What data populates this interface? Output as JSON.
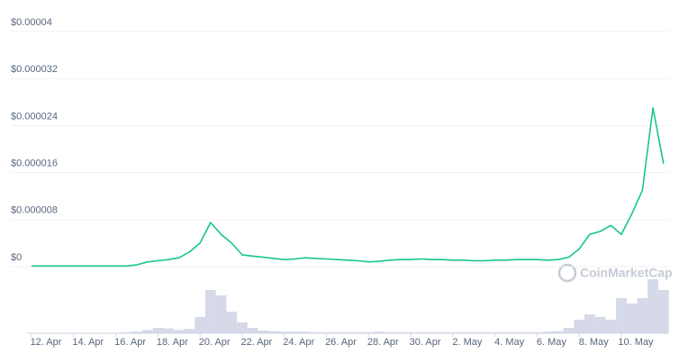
{
  "chart_data": {
    "type": "line",
    "watermark": "CoinMarketCap",
    "color": "#16c784",
    "volume_color": "#d5d9e8",
    "grid": true,
    "ylim": [
      0,
      4e-05
    ],
    "yticks": [
      {
        "value": 0,
        "label": "$0"
      },
      {
        "value": 8e-06,
        "label": "$0.000008"
      },
      {
        "value": 1.6e-05,
        "label": "$0.000016"
      },
      {
        "value": 2.4e-05,
        "label": "$0.000024"
      },
      {
        "value": 3.2e-05,
        "label": "$0.000032"
      },
      {
        "value": 4e-05,
        "label": "$0.00004"
      }
    ],
    "categories": [
      "12. Apr",
      null,
      null,
      null,
      "14. Apr",
      null,
      null,
      null,
      "16. Apr",
      null,
      null,
      null,
      "18. Apr",
      null,
      null,
      null,
      "20. Apr",
      null,
      null,
      null,
      "22. Apr",
      null,
      null,
      null,
      "24. Apr",
      null,
      null,
      null,
      "26. Apr",
      null,
      null,
      null,
      "28. Apr",
      null,
      null,
      null,
      "30. Apr",
      null,
      null,
      null,
      "2. May",
      null,
      null,
      null,
      "4. May",
      null,
      null,
      null,
      "6. May",
      null,
      null,
      null,
      "8. May",
      null,
      null,
      null,
      "10. May",
      null,
      null,
      null,
      null
    ],
    "values": [
      1e-07,
      1e-07,
      1e-07,
      1e-07,
      1e-07,
      1e-07,
      1e-07,
      1e-07,
      1e-07,
      1e-07,
      3e-07,
      8e-07,
      1e-06,
      1.2e-06,
      1.5e-06,
      2.5e-06,
      4e-06,
      7.5e-06,
      5.5e-06,
      4e-06,
      2e-06,
      1.8e-06,
      1.6e-06,
      1.4e-06,
      1.2e-06,
      1.3e-06,
      1.5e-06,
      1.4e-06,
      1.3e-06,
      1.2e-06,
      1.1e-06,
      1e-06,
      8e-07,
      9e-07,
      1.1e-06,
      1.2e-06,
      1.2e-06,
      1.3e-06,
      1.2e-06,
      1.2e-06,
      1.1e-06,
      1.1e-06,
      1e-06,
      1e-06,
      1.1e-06,
      1.1e-06,
      1.2e-06,
      1.2e-06,
      1.2e-06,
      1.1e-06,
      1.2e-06,
      1.6e-06,
      3e-06,
      5.5e-06,
      6e-06,
      7e-06,
      5.5e-06,
      9e-06,
      1.3e-05,
      2.7e-05,
      1.75e-05
    ],
    "volume": [
      1,
      1,
      1,
      1,
      1,
      1,
      1,
      1,
      1,
      2,
      3,
      6,
      10,
      9,
      6,
      8,
      30,
      80,
      70,
      40,
      20,
      10,
      5,
      4,
      3,
      3,
      3,
      2,
      2,
      2,
      2,
      2,
      2,
      3,
      2,
      2,
      2,
      2,
      2,
      2,
      2,
      2,
      2,
      2,
      2,
      2,
      2,
      2,
      2,
      3,
      4,
      10,
      25,
      35,
      30,
      25,
      65,
      55,
      65,
      100,
      80
    ]
  }
}
